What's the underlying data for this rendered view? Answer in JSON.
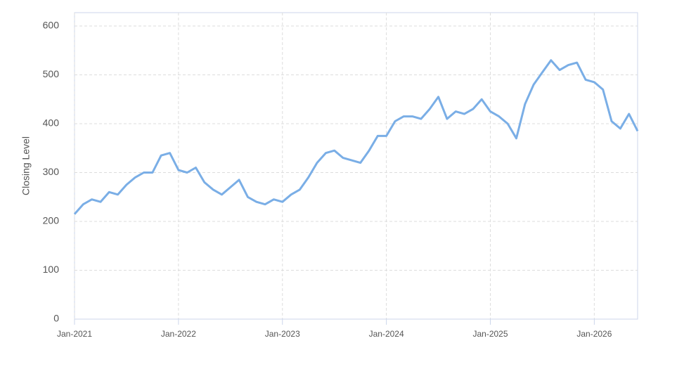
{
  "chart_data": {
    "type": "line",
    "y_label": "Closing Level",
    "x": [
      "2021-01",
      "2021-02",
      "2021-03",
      "2021-04",
      "2021-05",
      "2021-06",
      "2021-07",
      "2021-08",
      "2021-09",
      "2021-10",
      "2021-11",
      "2021-12",
      "2022-01",
      "2022-02",
      "2022-03",
      "2022-04",
      "2022-05",
      "2022-06",
      "2022-07",
      "2022-08",
      "2022-09",
      "2022-10",
      "2022-11",
      "2022-12",
      "2023-01",
      "2023-02",
      "2023-03",
      "2023-04",
      "2023-05",
      "2023-06",
      "2023-07",
      "2023-08",
      "2023-09",
      "2023-10",
      "2023-11",
      "2023-12",
      "2024-01",
      "2024-02",
      "2024-03",
      "2024-04",
      "2024-05",
      "2024-06",
      "2024-07",
      "2024-08",
      "2024-09",
      "2024-10",
      "2024-11",
      "2024-12",
      "2025-01",
      "2025-02",
      "2025-03",
      "2025-04",
      "2025-05",
      "2025-06",
      "2025-07",
      "2025-08",
      "2025-09",
      "2025-10",
      "2025-11",
      "2025-12",
      "2026-01",
      "2026-02",
      "2026-03",
      "2026-04",
      "2026-05",
      "2026-06"
    ],
    "series": [
      {
        "name": "Closing Level",
        "color": "#7aaee6",
        "values": [
          215,
          235,
          245,
          240,
          260,
          255,
          275,
          290,
          300,
          300,
          335,
          340,
          305,
          300,
          310,
          280,
          265,
          255,
          270,
          285,
          250,
          240,
          235,
          245,
          240,
          255,
          265,
          290,
          320,
          340,
          345,
          330,
          325,
          320,
          345,
          375,
          375,
          405,
          415,
          415,
          410,
          430,
          455,
          410,
          425,
          420,
          430,
          450,
          425,
          415,
          400,
          370,
          440,
          480,
          505,
          530,
          510,
          520,
          525,
          490,
          485,
          470,
          405,
          390,
          420,
          385
        ]
      }
    ],
    "xlim": [
      "2021-01",
      "2026-06"
    ],
    "xticks": [
      {
        "value": "2021-01",
        "label": "Jan-2021"
      },
      {
        "value": "2022-01",
        "label": "Jan-2022"
      },
      {
        "value": "2023-01",
        "label": "Jan-2023"
      },
      {
        "value": "2024-01",
        "label": "Jan-2024"
      },
      {
        "value": "2025-01",
        "label": "Jan-2025"
      },
      {
        "value": "2026-01",
        "label": "Jan-2026"
      }
    ],
    "ylim": [
      0,
      600
    ],
    "yticks": [
      0,
      100,
      200,
      300,
      400,
      500,
      600
    ],
    "grid": true
  }
}
